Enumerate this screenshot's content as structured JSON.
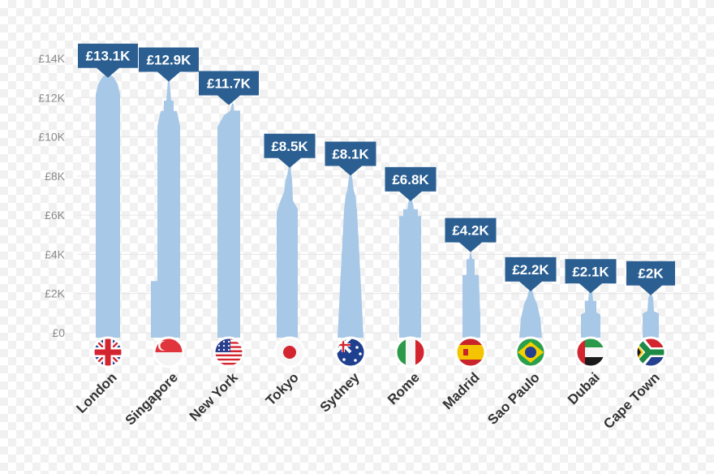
{
  "chart_data": {
    "type": "bar",
    "title": "",
    "xlabel": "",
    "ylabel": "",
    "ylim": [
      0,
      14000
    ],
    "y_ticks": [
      {
        "value": 0,
        "label": "£0"
      },
      {
        "value": 2000,
        "label": "£2K"
      },
      {
        "value": 4000,
        "label": "£4K"
      },
      {
        "value": 6000,
        "label": "£6K"
      },
      {
        "value": 8000,
        "label": "£8K"
      },
      {
        "value": 10000,
        "label": "£10K"
      },
      {
        "value": 12000,
        "label": "£12K"
      },
      {
        "value": 14000,
        "label": "£14K"
      }
    ],
    "grid": true,
    "bar_style": "building silhouettes",
    "colors": {
      "bar": "#a8c8e8",
      "badge": "#2b5f92",
      "badge_text": "#ffffff",
      "grid": "#e6e6e6",
      "tick_text": "#8a8a8a",
      "city_text": "#333333"
    },
    "categories": [
      "London",
      "Singapore",
      "New York",
      "Tokyo",
      "Sydney",
      "Rome",
      "Madrid",
      "Sao Paulo",
      "Dubai",
      "Cape Town"
    ],
    "values": [
      13100,
      12900,
      11700,
      8500,
      8100,
      6800,
      4200,
      2200,
      2100,
      2000
    ],
    "value_labels": [
      "£13.1K",
      "£12.9K",
      "£11.7K",
      "£8.5K",
      "£8.1K",
      "£6.8K",
      "£4.2K",
      "£2.2K",
      "£2.1K",
      "£2K"
    ],
    "flags": [
      "uk-flag",
      "singapore-flag",
      "usa-flag",
      "japan-flag",
      "australia-flag",
      "italy-flag",
      "spain-flag",
      "brazil-flag",
      "uae-flag",
      "south-africa-flag"
    ]
  }
}
